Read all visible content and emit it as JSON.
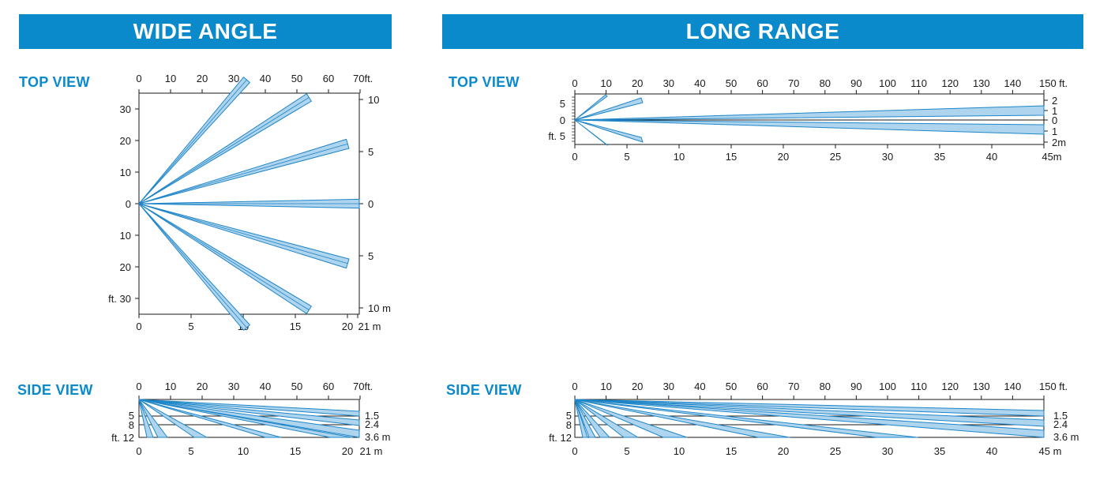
{
  "wide_angle": {
    "title": "WIDE ANGLE",
    "top_view": {
      "label": "TOP VIEW",
      "ft_ticks_top": [
        "0",
        "10",
        "20",
        "30",
        "40",
        "50",
        "60",
        "70ft."
      ],
      "ft_ticks_left": [
        "30",
        "20",
        "10",
        "0",
        "10",
        "20",
        "ft. 30"
      ],
      "m_ticks_right": [
        "10",
        "5",
        "0",
        "5",
        "10 m"
      ],
      "m_ticks_bottom": [
        "0",
        "5",
        "10",
        "15",
        "20",
        "21 m"
      ]
    },
    "side_view": {
      "label": "SIDE VIEW",
      "ft_ticks_top": [
        "0",
        "10",
        "20",
        "30",
        "40",
        "50",
        "60",
        "70ft."
      ],
      "ft_ticks_left": [
        "5",
        "8",
        "ft. 12"
      ],
      "m_ticks_right": [
        "1.5",
        "2.4",
        "3.6 m"
      ],
      "m_ticks_bottom": [
        "0",
        "5",
        "10",
        "15",
        "20",
        "21 m"
      ]
    }
  },
  "long_range": {
    "title": "LONG RANGE",
    "top_view": {
      "label": "TOP VIEW",
      "ft_ticks_top": [
        "0",
        "10",
        "20",
        "30",
        "40",
        "50",
        "60",
        "70",
        "80",
        "90",
        "100",
        "110",
        "120",
        "130",
        "140",
        "150 ft."
      ],
      "ft_ticks_left": [
        "5",
        "0",
        "ft. 5"
      ],
      "m_ticks_right": [
        "2",
        "1",
        "0",
        "1",
        "2m"
      ],
      "m_ticks_bottom": [
        "0",
        "5",
        "10",
        "15",
        "20",
        "25",
        "30",
        "35",
        "40",
        "45m"
      ]
    },
    "side_view": {
      "label": "SIDE VIEW",
      "ft_ticks_top": [
        "0",
        "10",
        "20",
        "30",
        "40",
        "50",
        "60",
        "70",
        "80",
        "90",
        "100",
        "110",
        "120",
        "130",
        "140",
        "150 ft."
      ],
      "ft_ticks_left": [
        "5",
        "8",
        "ft. 12"
      ],
      "m_ticks_right": [
        "1.5",
        "2.4",
        "3.6 m"
      ],
      "m_ticks_bottom": [
        "0",
        "5",
        "10",
        "15",
        "20",
        "25",
        "30",
        "35",
        "40",
        "45 m"
      ]
    }
  },
  "colors": {
    "accent": "#0a8acb",
    "beam_fill": "#aed4ee",
    "beam_stroke": "#1f86c8"
  }
}
